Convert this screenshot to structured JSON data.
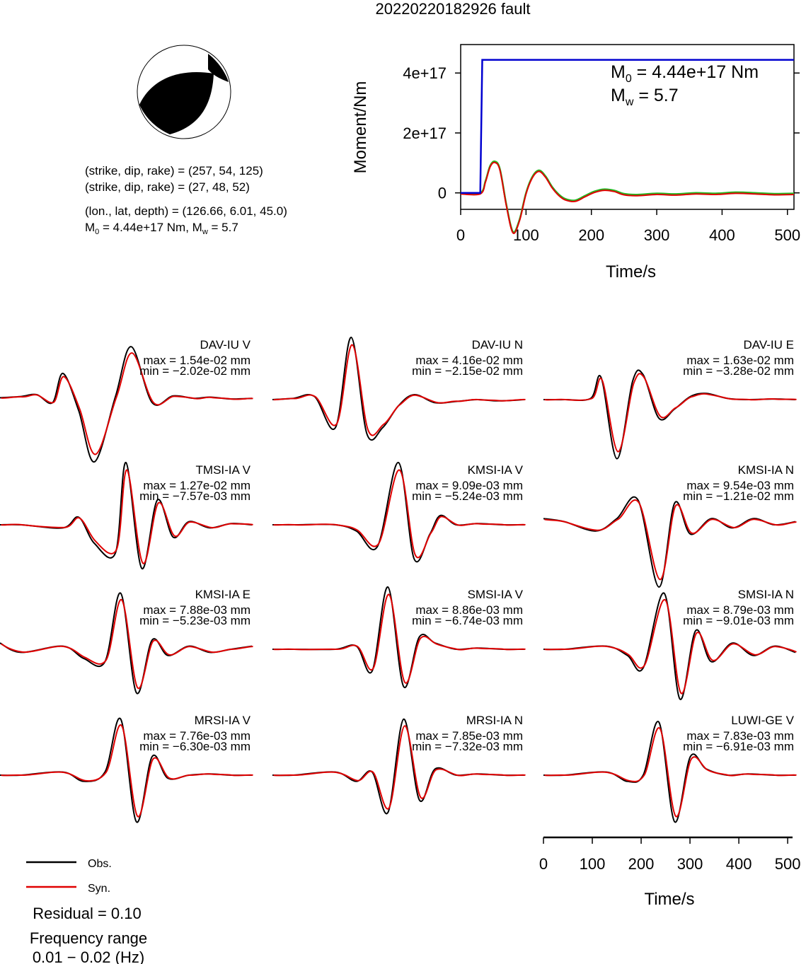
{
  "title": "20220220182926 fault",
  "mechanism": {
    "plane1": "(strike, dip, rake) = (257, 54, 125)",
    "plane2": "(strike, dip, rake) = (27, 48, 52)",
    "location": "(lon., lat, depth) = (126.66, 6.01, 45.0)",
    "m0_text": "4.44e+17 Nm",
    "mw_text": "5.7"
  },
  "colors": {
    "obs": "#000000",
    "syn": "#e00000",
    "cumulative": "#0000d0",
    "rate_green": "#22b822"
  },
  "chart_data": [
    {
      "type": "line",
      "name": "moment-function",
      "xlabel": "Time/s",
      "ylabel": "Moment/Nm",
      "xlim": [
        0,
        510
      ],
      "ylim": [
        -5.5e+16,
        4.95e+17
      ],
      "x_ticks": [
        0,
        100,
        200,
        300,
        400,
        500
      ],
      "y_ticks": [
        0,
        2e+17,
        4e+17
      ],
      "y_tick_labels": [
        "0",
        "2e+17",
        "4e+17"
      ],
      "annotation": {
        "m0": "4.44e+17 Nm",
        "mw": "5.7"
      },
      "cumulative": {
        "t": [
          0,
          30,
          33,
          510
        ],
        "v": [
          0,
          0,
          4.44e+17,
          4.44e+17
        ]
      },
      "rate": {
        "t": [
          0,
          30,
          38,
          45,
          52,
          60,
          70,
          80,
          90,
          100,
          110,
          120,
          130,
          140,
          150,
          160,
          175,
          190,
          205,
          220,
          235,
          250,
          270,
          300,
          330,
          360,
          390,
          420,
          450,
          480,
          510
        ],
        "v": [
          0,
          0,
          4e+16,
          9e+16,
          1.05e+17,
          8e+16,
          -4e+16,
          -1.3e+17,
          -9e+16,
          0.0,
          5.5e+16,
          7.5e+16,
          5.5e+16,
          2e+16,
          -5000000000000000.0,
          -2e+16,
          -2.5e+16,
          -1e+16,
          5000000000000000.0,
          1.2e+16,
          8000000000000000.0,
          -3000000000000000.0,
          -6000000000000000.0,
          -2000000000000000.0,
          -4000000000000000.0,
          0.0,
          -2000000000000000.0,
          2000000000000000.0,
          0.0,
          -3000000000000000.0,
          -2000000000000000.0
        ]
      }
    },
    {
      "type": "line",
      "name": "waveform-panels",
      "xlabel": "Time/s",
      "xlim": [
        0,
        510
      ],
      "x_ticks": [
        0,
        100,
        200,
        300,
        400,
        500
      ],
      "panels": [
        {
          "station": "DAV-IU V",
          "max": "1.54e-02",
          "min": "-2.02e-02",
          "unit": "mm",
          "pk": [
            [
              -4,
              0.03
            ],
            [
              0,
              0.05
            ],
            [
              3,
              0.08
            ],
            [
              6,
              -0.05
            ],
            [
              8,
              0.42
            ],
            [
              11,
              -0.18
            ],
            [
              14,
              -1.0
            ],
            [
              18,
              0.05
            ],
            [
              21,
              0.85
            ],
            [
              25,
              -0.05
            ],
            [
              29,
              0.06
            ],
            [
              33,
              0.02
            ],
            [
              36,
              0.04
            ],
            [
              40,
              0.01
            ],
            [
              44,
              0.02
            ]
          ]
        },
        {
          "station": "DAV-IU N",
          "max": "4.16e-02",
          "min": "-2.15e-02",
          "unit": "mm",
          "pk": [
            [
              -4,
              0.0
            ],
            [
              0,
              0.02
            ],
            [
              4,
              0.05
            ],
            [
              8,
              -0.45
            ],
            [
              11,
              1.0
            ],
            [
              14,
              -0.55
            ],
            [
              17,
              -0.45
            ],
            [
              20,
              -0.1
            ],
            [
              23,
              0.08
            ],
            [
              27,
              -0.05
            ],
            [
              31,
              -0.03
            ],
            [
              35,
              0.0
            ],
            [
              39,
              -0.02
            ],
            [
              44,
              0.0
            ]
          ]
        },
        {
          "station": "DAV-IU E",
          "max": "1.63e-02",
          "min": "-3.28e-02",
          "unit": "mm",
          "pk": [
            [
              -4,
              0.0
            ],
            [
              0,
              0.0
            ],
            [
              5,
              0.02
            ],
            [
              7,
              0.35
            ],
            [
              10,
              -0.95
            ],
            [
              13,
              0.3
            ],
            [
              15,
              0.4
            ],
            [
              18,
              -0.3
            ],
            [
              21,
              -0.15
            ],
            [
              24,
              0.05
            ],
            [
              27,
              0.1
            ],
            [
              31,
              0.02
            ],
            [
              35,
              0.0
            ],
            [
              40,
              0.01
            ],
            [
              44,
              0.0
            ]
          ]
        },
        {
          "station": "TMSI-IA V",
          "max": "1.27e-02",
          "min": "-7.57e-03",
          "unit": "mm",
          "pk": [
            [
              -4,
              0.0
            ],
            [
              0,
              0.0
            ],
            [
              8,
              -0.05
            ],
            [
              11,
              0.12
            ],
            [
              14,
              -0.3
            ],
            [
              18,
              -0.45
            ],
            [
              20,
              1.0
            ],
            [
              23,
              -0.7
            ],
            [
              26,
              0.4
            ],
            [
              29,
              -0.2
            ],
            [
              32,
              0.05
            ],
            [
              36,
              -0.05
            ],
            [
              40,
              0.02
            ],
            [
              44,
              0.0
            ]
          ]
        },
        {
          "station": "KMSI-IA V",
          "max": "9.09e-03",
          "min": "-5.24e-03",
          "unit": "mm",
          "pk": [
            [
              -4,
              0.0
            ],
            [
              0,
              0.0
            ],
            [
              8,
              0.0
            ],
            [
              12,
              -0.1
            ],
            [
              16,
              -0.35
            ],
            [
              20,
              1.0
            ],
            [
              23,
              -0.55
            ],
            [
              26,
              -0.15
            ],
            [
              28,
              0.15
            ],
            [
              31,
              0.0
            ],
            [
              35,
              0.02
            ],
            [
              40,
              0.0
            ],
            [
              44,
              0.0
            ]
          ]
        },
        {
          "station": "KMSI-IA N",
          "max": "9.54e-03",
          "min": "-1.21e-02",
          "unit": "mm",
          "pk": [
            [
              -4,
              0.1
            ],
            [
              0,
              0.05
            ],
            [
              6,
              -0.1
            ],
            [
              10,
              0.1
            ],
            [
              14,
              0.4
            ],
            [
              18,
              -1.0
            ],
            [
              21,
              0.35
            ],
            [
              24,
              -0.15
            ],
            [
              28,
              0.1
            ],
            [
              32,
              -0.05
            ],
            [
              36,
              0.1
            ],
            [
              40,
              0.0
            ],
            [
              44,
              0.05
            ]
          ]
        },
        {
          "station": "KMSI-IA E",
          "max": "7.88e-03",
          "min": "-5.23e-03",
          "unit": "mm",
          "pk": [
            [
              -4,
              0.1
            ],
            [
              0,
              -0.05
            ],
            [
              8,
              0.05
            ],
            [
              12,
              -0.15
            ],
            [
              16,
              -0.2
            ],
            [
              19,
              0.9
            ],
            [
              22,
              -0.7
            ],
            [
              25,
              0.15
            ],
            [
              28,
              -0.1
            ],
            [
              32,
              0.05
            ],
            [
              36,
              -0.05
            ],
            [
              40,
              0.0
            ],
            [
              44,
              0.05
            ]
          ]
        },
        {
          "station": "SMSI-IA V",
          "max": "8.86e-03",
          "min": "-6.74e-03",
          "unit": "mm",
          "pk": [
            [
              -4,
              0.0
            ],
            [
              0,
              0.0
            ],
            [
              8,
              0.0
            ],
            [
              12,
              0.05
            ],
            [
              15,
              -0.35
            ],
            [
              18,
              1.0
            ],
            [
              21,
              -0.6
            ],
            [
              24,
              0.2
            ],
            [
              27,
              0.1
            ],
            [
              31,
              0.0
            ],
            [
              35,
              0.02
            ],
            [
              40,
              0.0
            ],
            [
              44,
              0.0
            ]
          ]
        },
        {
          "station": "SMSI-IA N",
          "max": "8.79e-03",
          "min": "-9.01e-03",
          "unit": "mm",
          "pk": [
            [
              -4,
              0.0
            ],
            [
              0,
              0.0
            ],
            [
              8,
              0.05
            ],
            [
              12,
              -0.1
            ],
            [
              15,
              -0.3
            ],
            [
              19,
              0.9
            ],
            [
              22,
              -0.8
            ],
            [
              25,
              0.3
            ],
            [
              28,
              -0.2
            ],
            [
              32,
              0.1
            ],
            [
              36,
              -0.1
            ],
            [
              40,
              0.05
            ],
            [
              44,
              -0.05
            ]
          ]
        },
        {
          "station": "MRSI-IA V",
          "max": "7.76e-03",
          "min": "-6.30e-03",
          "unit": "mm",
          "pk": [
            [
              -4,
              0.0
            ],
            [
              0,
              0.0
            ],
            [
              8,
              0.05
            ],
            [
              12,
              -0.1
            ],
            [
              16,
              0.05
            ],
            [
              19,
              0.9
            ],
            [
              22,
              -0.75
            ],
            [
              25,
              0.3
            ],
            [
              28,
              -0.05
            ],
            [
              32,
              0.0
            ],
            [
              36,
              0.02
            ],
            [
              40,
              0.0
            ],
            [
              44,
              0.0
            ]
          ]
        },
        {
          "station": "MRSI-IA N",
          "max": "7.85e-03",
          "min": "-7.32e-03",
          "unit": "mm",
          "pk": [
            [
              -4,
              0.0
            ],
            [
              0,
              0.0
            ],
            [
              8,
              0.05
            ],
            [
              12,
              -0.1
            ],
            [
              15,
              0.05
            ],
            [
              18,
              -0.6
            ],
            [
              21,
              0.9
            ],
            [
              24,
              -0.4
            ],
            [
              27,
              0.1
            ],
            [
              31,
              0.0
            ],
            [
              35,
              0.02
            ],
            [
              40,
              0.0
            ],
            [
              44,
              0.0
            ]
          ]
        },
        {
          "station": "LUWI-GE V",
          "max": "7.83e-03",
          "min": "-6.91e-03",
          "unit": "mm",
          "pk": [
            [
              -4,
              0.0
            ],
            [
              0,
              0.0
            ],
            [
              8,
              0.05
            ],
            [
              12,
              -0.1
            ],
            [
              15,
              0.0
            ],
            [
              18,
              0.85
            ],
            [
              21,
              -0.75
            ],
            [
              24,
              0.3
            ],
            [
              27,
              0.1
            ],
            [
              31,
              0.0
            ],
            [
              35,
              0.02
            ],
            [
              40,
              0.0
            ],
            [
              44,
              0.0
            ]
          ]
        }
      ]
    }
  ],
  "legend": {
    "obs": "Obs.",
    "syn": "Syn."
  },
  "residual": "Residual = 0.10",
  "freq_label": "Frequency range",
  "freq_value": "0.01 − 0.02 (Hz)"
}
